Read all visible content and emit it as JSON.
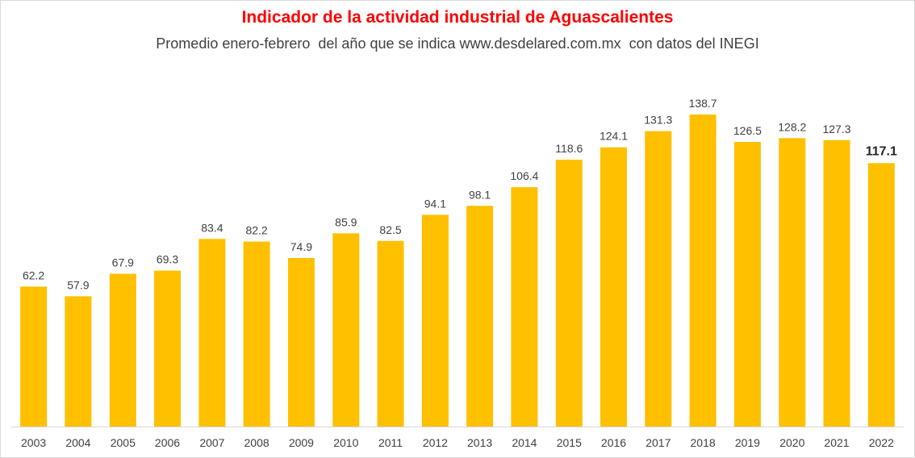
{
  "chart_data": {
    "type": "bar",
    "title": "Indicador de la actividad industrial de Aguascalientes",
    "subtitle": "Promedio enero-febrero  del año que se indica www.desdelared.com.mx  con datos del INEGI",
    "categories": [
      "2003",
      "2004",
      "2005",
      "2006",
      "2007",
      "2008",
      "2009",
      "2010",
      "2011",
      "2012",
      "2013",
      "2014",
      "2015",
      "2016",
      "2017",
      "2018",
      "2019",
      "2020",
      "2021",
      "2022"
    ],
    "values": [
      62.2,
      57.9,
      67.9,
      69.3,
      83.4,
      82.2,
      74.9,
      85.9,
      82.5,
      94.1,
      98.1,
      106.4,
      118.6,
      124.1,
      131.3,
      138.7,
      126.5,
      128.2,
      127.3,
      117.1
    ],
    "labels": [
      "62.2",
      "57.9",
      "67.9",
      "69.3",
      "83.4",
      "82.2",
      "74.9",
      "85.9",
      "82.5",
      "94.1",
      "98.1",
      "106.4",
      "118.6",
      "124.1",
      "131.3",
      "138.7",
      "126.5",
      "128.2",
      "127.3",
      "117.1"
    ],
    "highlighted_index": 19,
    "ylim": [
      0,
      138.7
    ],
    "grid": false,
    "legend": "none",
    "xlabel": "",
    "ylabel": ""
  },
  "colors": {
    "bar": "#ffc000",
    "title": "#ff0000",
    "text": "#404040",
    "axis": "#d9d9d9"
  }
}
